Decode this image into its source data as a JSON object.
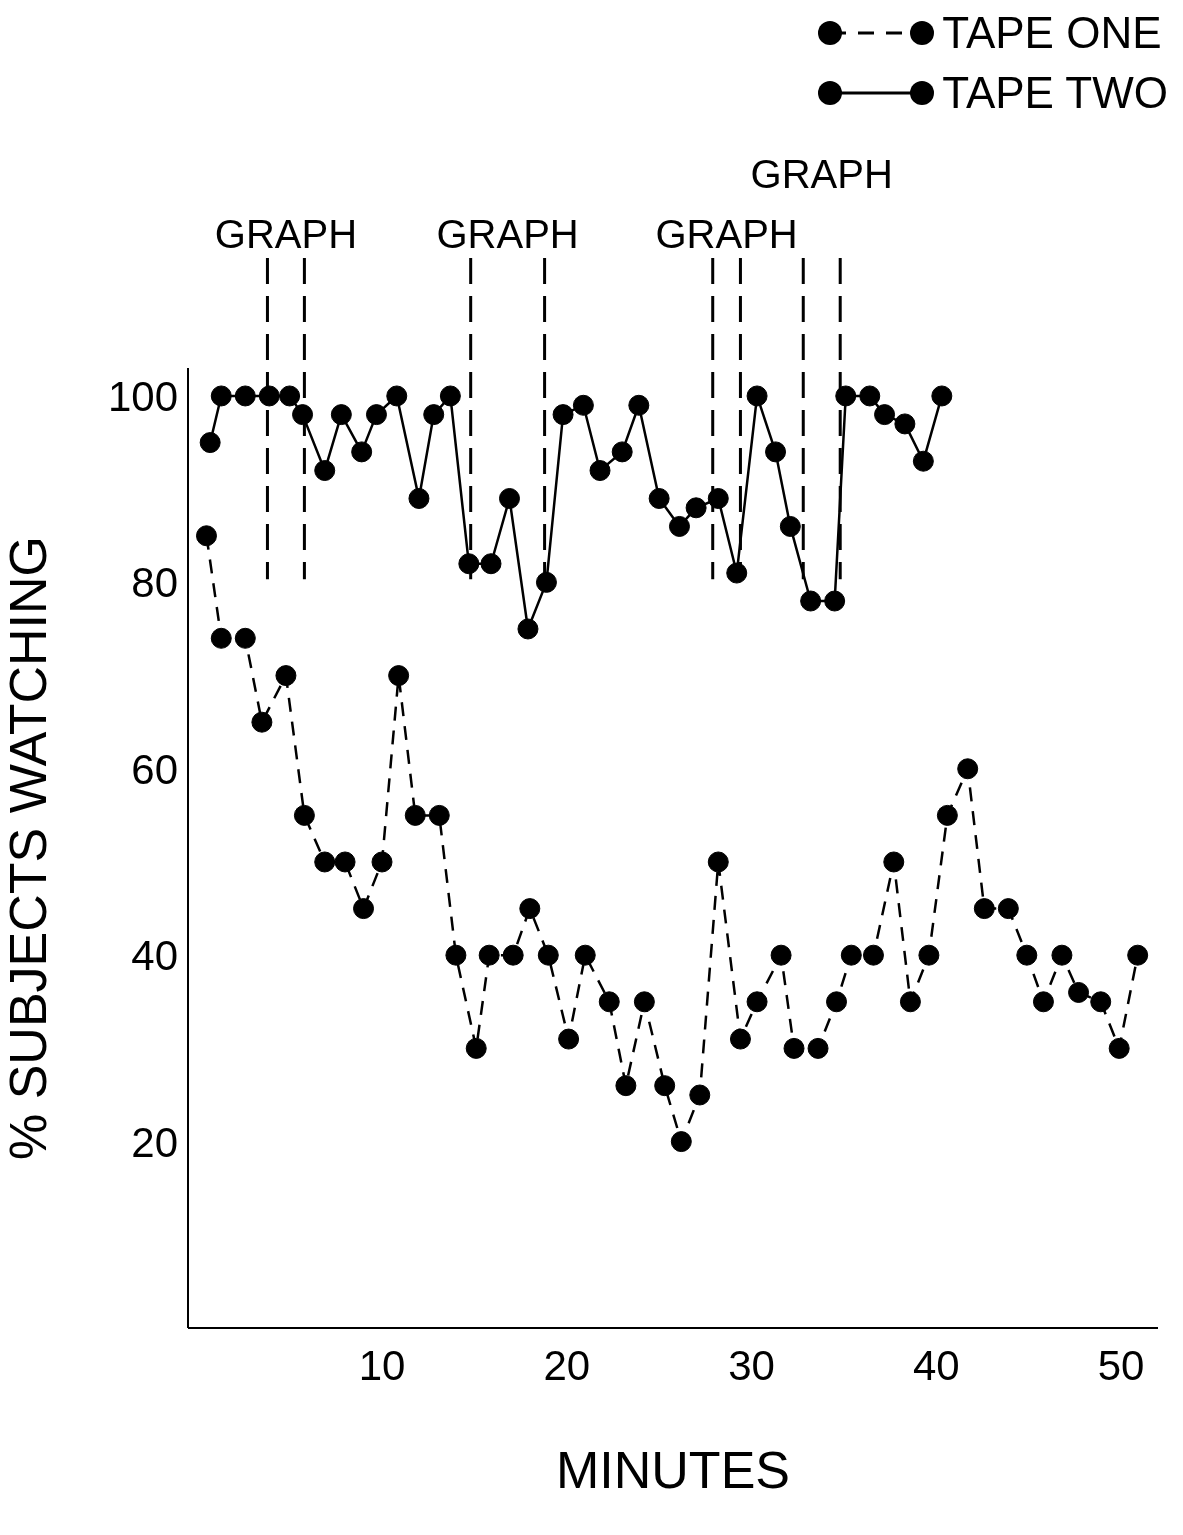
{
  "chart_data": {
    "type": "line",
    "xlabel": "MINUTES",
    "ylabel": "% SUBJECTS WATCHING",
    "xlim": [
      -0.5,
      52
    ],
    "ylim": [
      0,
      103
    ],
    "xticks": [
      10,
      20,
      30,
      40,
      50
    ],
    "yticks": [
      20,
      40,
      60,
      80,
      100
    ],
    "grid": false,
    "legend": "top right",
    "marker": "circle",
    "series": [
      {
        "name": "TAPE ONE",
        "color": "#000000",
        "line_style": "dashed",
        "x": [
          0.5,
          1.3,
          2.6,
          3.5,
          4.8,
          5.8,
          6.9,
          8.0,
          9.0,
          10.0,
          10.9,
          11.8,
          13.1,
          14.0,
          15.1,
          15.8,
          17.1,
          18.0,
          19.0,
          20.1,
          21.0,
          22.3,
          23.2,
          24.2,
          25.3,
          26.2,
          27.2,
          28.2,
          29.4,
          30.3,
          31.6,
          32.3,
          33.6,
          34.6,
          35.4,
          36.6,
          37.7,
          38.6,
          39.6,
          40.6,
          41.7,
          42.6,
          43.9,
          44.9,
          45.8,
          46.8,
          47.7,
          48.9,
          49.9,
          50.9
        ],
        "values": [
          85,
          74,
          74,
          65,
          70,
          55,
          50,
          50,
          45,
          50,
          70,
          55,
          55,
          40,
          30,
          40,
          40,
          45,
          40,
          31,
          40,
          35,
          26,
          35,
          26,
          20,
          25,
          50,
          31,
          35,
          40,
          30,
          30,
          35,
          40,
          40,
          50,
          35,
          40,
          55,
          60,
          45,
          45,
          40,
          35,
          40,
          36,
          35,
          30,
          40
        ]
      },
      {
        "name": "TAPE TWO",
        "color": "#000000",
        "line_style": "solid",
        "x": [
          0.7,
          1.3,
          2.6,
          3.9,
          5.0,
          5.7,
          6.9,
          7.8,
          8.9,
          9.7,
          10.8,
          12.0,
          12.8,
          13.7,
          14.7,
          15.9,
          16.9,
          17.9,
          18.9,
          19.8,
          20.9,
          21.8,
          23.0,
          23.9,
          25.0,
          26.1,
          27.0,
          28.2,
          29.2,
          30.3,
          31.3,
          32.1,
          33.2,
          34.5,
          35.1,
          36.4,
          37.2,
          38.3,
          39.3,
          40.3
        ],
        "values": [
          95,
          100,
          100,
          100,
          100,
          98,
          92,
          98,
          94,
          98,
          100,
          89,
          98,
          100,
          82,
          82,
          89,
          75,
          80,
          98,
          99,
          92,
          94,
          99,
          89,
          86,
          88,
          89,
          81,
          100,
          94,
          86,
          78,
          78,
          100,
          100,
          98,
          97,
          93,
          100
        ]
      }
    ],
    "ref_lines": [
      {
        "axis": "x",
        "value": 3.8,
        "label": "GRAPH",
        "line_style": "dashed"
      },
      {
        "axis": "x",
        "value": 5.8,
        "label": null,
        "line_style": "dashed"
      },
      {
        "axis": "x",
        "value": 14.8,
        "label": "GRAPH",
        "line_style": "dashed"
      },
      {
        "axis": "x",
        "value": 18.8,
        "label": null,
        "line_style": "dashed"
      },
      {
        "axis": "x",
        "value": 27.9,
        "label": "GRAPH",
        "line_style": "dashed"
      },
      {
        "axis": "x",
        "value": 29.4,
        "label": null,
        "line_style": "dashed"
      },
      {
        "axis": "x",
        "value": 32.8,
        "label": "GRAPH",
        "line_style": "dashed"
      },
      {
        "axis": "x",
        "value": 34.8,
        "label": null,
        "line_style": "dashed"
      }
    ]
  }
}
